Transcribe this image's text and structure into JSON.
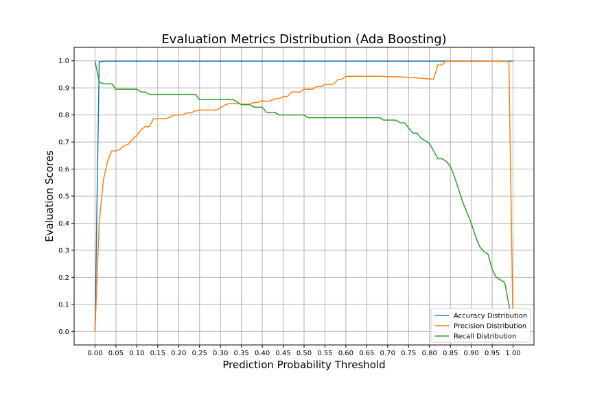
{
  "chart_data": {
    "type": "line",
    "title": "Evaluation Metrics Distribution (Ada Boosting)",
    "xlabel": "Prediction Probability Threshold",
    "ylabel": "Evaluation Scores",
    "xlim": [
      -0.05,
      1.05
    ],
    "ylim": [
      -0.05,
      1.05
    ],
    "grid": true,
    "legend_position": "lower-right",
    "x_ticks": [
      "0.00",
      "0.05",
      "0.10",
      "0.15",
      "0.20",
      "0.25",
      "0.30",
      "0.35",
      "0.40",
      "0.45",
      "0.50",
      "0.55",
      "0.60",
      "0.65",
      "0.70",
      "0.75",
      "0.80",
      "0.85",
      "0.90",
      "0.95",
      "1.00"
    ],
    "y_ticks": [
      "0.0",
      "0.1",
      "0.2",
      "0.3",
      "0.4",
      "0.5",
      "0.6",
      "0.7",
      "0.8",
      "0.9",
      "1.0"
    ],
    "series": [
      {
        "name": "Accuracy Distribution",
        "color": "#1f77b4",
        "points": [
          [
            0.0,
            0.0
          ],
          [
            0.01,
            0.997
          ],
          [
            0.02,
            0.998
          ],
          [
            0.03,
            0.999
          ],
          [
            0.05,
            0.999
          ],
          [
            1.0,
            0.999
          ]
        ]
      },
      {
        "name": "Precision Distribution",
        "color": "#ff7f0e",
        "points": [
          [
            0.0,
            0.0
          ],
          [
            0.01,
            0.4
          ],
          [
            0.02,
            0.56
          ],
          [
            0.03,
            0.63
          ],
          [
            0.04,
            0.667
          ],
          [
            0.05,
            0.667
          ],
          [
            0.06,
            0.673
          ],
          [
            0.07,
            0.687
          ],
          [
            0.08,
            0.692
          ],
          [
            0.09,
            0.712
          ],
          [
            0.1,
            0.724
          ],
          [
            0.11,
            0.745
          ],
          [
            0.12,
            0.757
          ],
          [
            0.13,
            0.757
          ],
          [
            0.14,
            0.786
          ],
          [
            0.15,
            0.786
          ],
          [
            0.17,
            0.786
          ],
          [
            0.18,
            0.793
          ],
          [
            0.19,
            0.8
          ],
          [
            0.2,
            0.8
          ],
          [
            0.21,
            0.8
          ],
          [
            0.22,
            0.808
          ],
          [
            0.23,
            0.808
          ],
          [
            0.24,
            0.815
          ],
          [
            0.25,
            0.818
          ],
          [
            0.26,
            0.818
          ],
          [
            0.29,
            0.818
          ],
          [
            0.3,
            0.826
          ],
          [
            0.31,
            0.836
          ],
          [
            0.32,
            0.842
          ],
          [
            0.34,
            0.842
          ],
          [
            0.35,
            0.84
          ],
          [
            0.37,
            0.84
          ],
          [
            0.38,
            0.846
          ],
          [
            0.39,
            0.846
          ],
          [
            0.4,
            0.853
          ],
          [
            0.41,
            0.85
          ],
          [
            0.42,
            0.852
          ],
          [
            0.43,
            0.86
          ],
          [
            0.44,
            0.86
          ],
          [
            0.45,
            0.868
          ],
          [
            0.46,
            0.868
          ],
          [
            0.47,
            0.885
          ],
          [
            0.48,
            0.885
          ],
          [
            0.49,
            0.885
          ],
          [
            0.5,
            0.895
          ],
          [
            0.51,
            0.895
          ],
          [
            0.52,
            0.895
          ],
          [
            0.53,
            0.905
          ],
          [
            0.54,
            0.905
          ],
          [
            0.55,
            0.913
          ],
          [
            0.56,
            0.913
          ],
          [
            0.57,
            0.913
          ],
          [
            0.58,
            0.93
          ],
          [
            0.59,
            0.932
          ],
          [
            0.6,
            0.943
          ],
          [
            0.62,
            0.943
          ],
          [
            0.65,
            0.943
          ],
          [
            0.68,
            0.943
          ],
          [
            0.7,
            0.942
          ],
          [
            0.73,
            0.941
          ],
          [
            0.76,
            0.938
          ],
          [
            0.78,
            0.936
          ],
          [
            0.8,
            0.933
          ],
          [
            0.81,
            0.932
          ],
          [
            0.82,
            0.985
          ],
          [
            0.83,
            0.985
          ],
          [
            0.84,
            1.0
          ],
          [
            0.85,
            1.0
          ],
          [
            0.9,
            1.0
          ],
          [
            0.95,
            0.999
          ],
          [
            0.99,
            0.998
          ],
          [
            1.0,
            0.0
          ]
        ]
      },
      {
        "name": "Recall Distribution",
        "color": "#2ca02c",
        "points": [
          [
            0.0,
            1.0
          ],
          [
            0.01,
            0.922
          ],
          [
            0.02,
            0.915
          ],
          [
            0.03,
            0.915
          ],
          [
            0.04,
            0.915
          ],
          [
            0.05,
            0.895
          ],
          [
            0.06,
            0.895
          ],
          [
            0.1,
            0.895
          ],
          [
            0.11,
            0.885
          ],
          [
            0.12,
            0.885
          ],
          [
            0.13,
            0.876
          ],
          [
            0.14,
            0.876
          ],
          [
            0.2,
            0.876
          ],
          [
            0.24,
            0.876
          ],
          [
            0.25,
            0.857
          ],
          [
            0.26,
            0.857
          ],
          [
            0.33,
            0.857
          ],
          [
            0.34,
            0.848
          ],
          [
            0.35,
            0.838
          ],
          [
            0.37,
            0.838
          ],
          [
            0.38,
            0.829
          ],
          [
            0.4,
            0.829
          ],
          [
            0.41,
            0.81
          ],
          [
            0.43,
            0.81
          ],
          [
            0.44,
            0.8
          ],
          [
            0.5,
            0.8
          ],
          [
            0.51,
            0.79
          ],
          [
            0.55,
            0.79
          ],
          [
            0.6,
            0.79
          ],
          [
            0.65,
            0.79
          ],
          [
            0.68,
            0.79
          ],
          [
            0.69,
            0.781
          ],
          [
            0.72,
            0.781
          ],
          [
            0.73,
            0.771
          ],
          [
            0.74,
            0.771
          ],
          [
            0.75,
            0.752
          ],
          [
            0.76,
            0.733
          ],
          [
            0.77,
            0.733
          ],
          [
            0.78,
            0.714
          ],
          [
            0.79,
            0.705
          ],
          [
            0.8,
            0.695
          ],
          [
            0.81,
            0.667
          ],
          [
            0.82,
            0.638
          ],
          [
            0.83,
            0.638
          ],
          [
            0.84,
            0.629
          ],
          [
            0.85,
            0.61
          ],
          [
            0.86,
            0.571
          ],
          [
            0.87,
            0.524
          ],
          [
            0.88,
            0.476
          ],
          [
            0.89,
            0.438
          ],
          [
            0.9,
            0.4
          ],
          [
            0.91,
            0.352
          ],
          [
            0.92,
            0.314
          ],
          [
            0.93,
            0.295
          ],
          [
            0.94,
            0.286
          ],
          [
            0.95,
            0.229
          ],
          [
            0.96,
            0.2
          ],
          [
            0.97,
            0.19
          ],
          [
            0.98,
            0.181
          ],
          [
            0.99,
            0.1
          ],
          [
            1.0,
            0.0
          ]
        ]
      }
    ]
  }
}
